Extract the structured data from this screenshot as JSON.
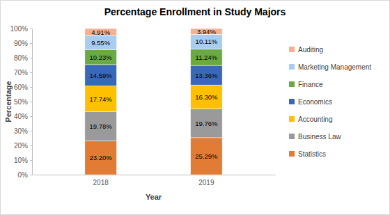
{
  "chart_data": {
    "type": "bar",
    "title": "Percentage Enrollment in Study Majors",
    "x_label": "Year",
    "y_label": "Percentage",
    "categories": [
      "2018",
      "2019"
    ],
    "stacked": true,
    "data_labels": true,
    "legend": "right",
    "grid": false,
    "ylim": [
      0,
      100
    ],
    "yticks": [
      {
        "value": 0,
        "label": "0%"
      },
      {
        "value": 10,
        "label": "10%"
      },
      {
        "value": 20,
        "label": "20%"
      },
      {
        "value": 30,
        "label": "30%"
      },
      {
        "value": 40,
        "label": "40%"
      },
      {
        "value": 50,
        "label": "50%"
      },
      {
        "value": 60,
        "label": "60%"
      },
      {
        "value": 70,
        "label": "70%"
      },
      {
        "value": 80,
        "label": "80%"
      },
      {
        "value": 90,
        "label": "90%"
      },
      {
        "value": 100,
        "label": "100%"
      }
    ],
    "series": [
      {
        "name": "Statistics",
        "color": "#e27b34",
        "values": [
          23.2,
          25.29
        ],
        "value_labels": [
          "23.20%",
          "25.29%"
        ]
      },
      {
        "name": "Business Law",
        "color": "#9a9a9a",
        "values": [
          19.78,
          19.76
        ],
        "value_labels": [
          "19.78%",
          "19.76%"
        ]
      },
      {
        "name": "Accounting",
        "color": "#ffc000",
        "values": [
          17.74,
          16.3
        ],
        "value_labels": [
          "17.74%",
          "16.30%"
        ]
      },
      {
        "name": "Economics",
        "color": "#3a68b8",
        "values": [
          14.59,
          13.36
        ],
        "value_labels": [
          "14.59%",
          "13.36%"
        ]
      },
      {
        "name": "Finance",
        "color": "#6aaa45",
        "values": [
          10.23,
          11.24
        ],
        "value_labels": [
          "10.23%",
          "11.24%"
        ]
      },
      {
        "name": "Marketing Management",
        "color": "#a9cdf0",
        "values": [
          9.55,
          10.11
        ],
        "value_labels": [
          "9.55%",
          "10.11%"
        ]
      },
      {
        "name": "Auditing",
        "color": "#f6b090",
        "values": [
          4.91,
          3.94
        ],
        "value_labels": [
          "4.91%",
          "3.94%"
        ]
      }
    ]
  }
}
